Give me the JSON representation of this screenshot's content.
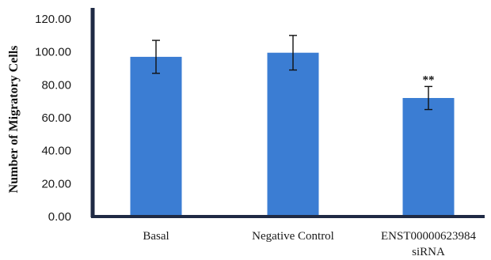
{
  "chart_data": {
    "type": "bar",
    "title": "",
    "xlabel": "",
    "ylabel": "Number of Migratory Cells",
    "ylim": [
      0,
      120
    ],
    "yticks": [
      "0.00",
      "20.00",
      "40.00",
      "60.00",
      "80.00",
      "100.00",
      "120.00"
    ],
    "ytick_values": [
      0,
      20,
      40,
      60,
      80,
      100,
      120
    ],
    "categories": [
      [
        "Basal"
      ],
      [
        "Negative Control"
      ],
      [
        "ENST00000623984",
        "siRNA"
      ]
    ],
    "values": [
      97,
      99.5,
      72
    ],
    "error": [
      10,
      10.5,
      7
    ],
    "annotations": [
      "",
      "",
      "**"
    ],
    "bar_color": "#3b7dd3",
    "axis_color": "#1f2a44",
    "grid": false,
    "legend": "none"
  }
}
